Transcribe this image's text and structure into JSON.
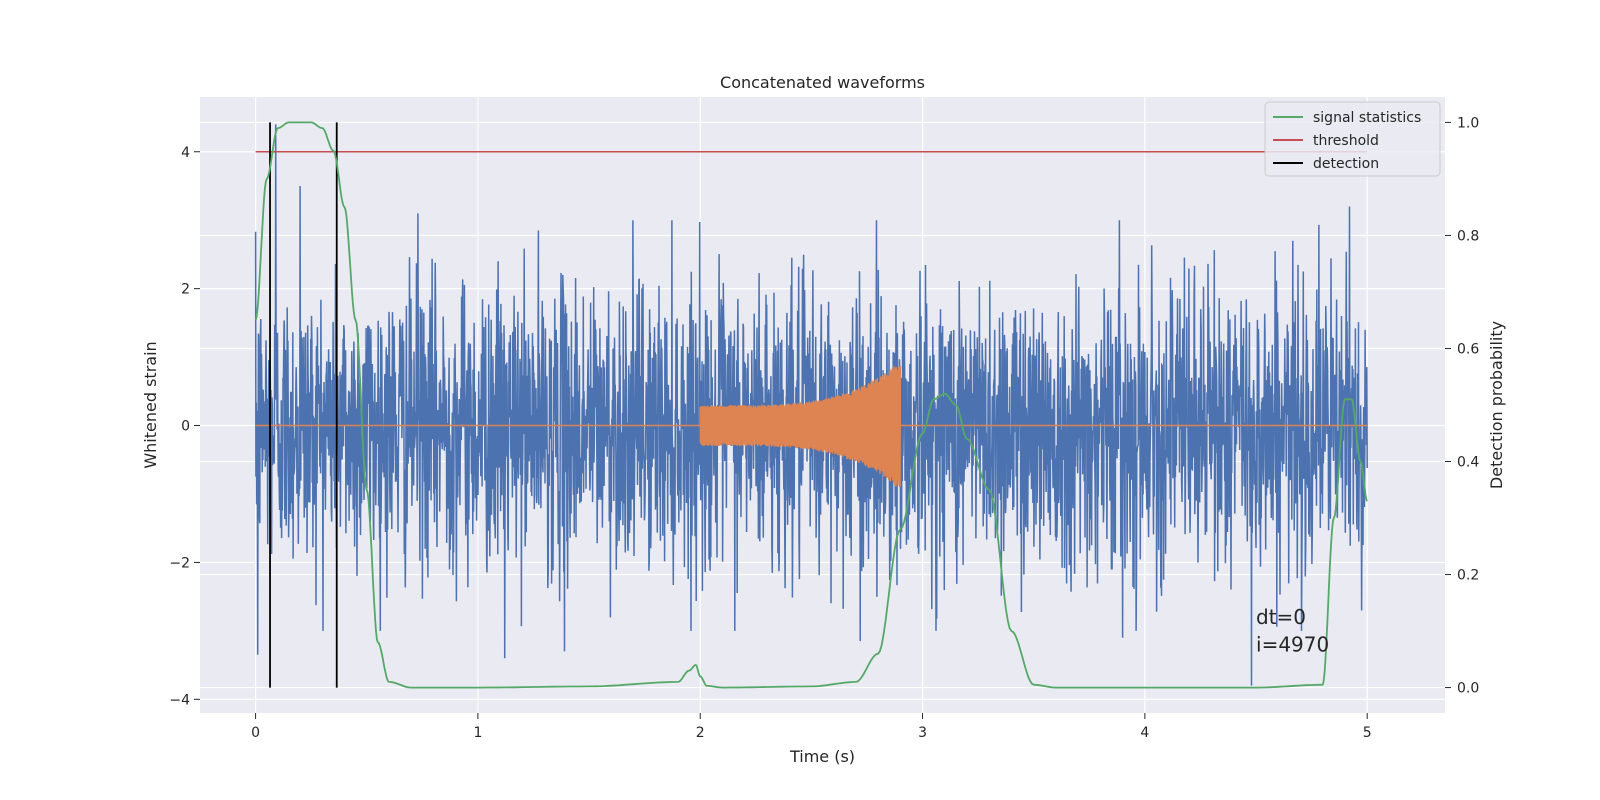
{
  "chart_data": {
    "type": "line",
    "title": "Concatenated waveforms",
    "xlabel": "Time (s)",
    "ylabel": "Whitened strain",
    "ylabel_right": "Detection probability",
    "xlim": [
      -0.25,
      5.35
    ],
    "ylim": [
      -4.2,
      4.8
    ],
    "ylim_right": [
      -0.045,
      1.045
    ],
    "xticks": [
      0,
      1,
      2,
      3,
      4,
      5
    ],
    "yticks": [
      -4,
      -2,
      0,
      2,
      4
    ],
    "yticks_right": [
      0.0,
      0.2,
      0.4,
      0.6,
      0.8,
      1.0
    ],
    "xtick_labels": [
      "0",
      "1",
      "2",
      "3",
      "4",
      "5"
    ],
    "ytick_labels": [
      "−4",
      "−2",
      "0",
      "2",
      "4"
    ],
    "ytick_right_labels": [
      "0.0",
      "0.2",
      "0.4",
      "0.6",
      "0.8",
      "1.0"
    ],
    "grid": true,
    "legend_position": "top-right",
    "colors": {
      "noise": "#4c72b0",
      "template": "#dd8452",
      "signal_statistics": "#55a868",
      "threshold": "#c44e52",
      "detection": "#000000",
      "background": "#eaeaf2",
      "grid": "#ffffff"
    },
    "series": [
      {
        "name": "signal statistics",
        "axis": "right",
        "x": [
          0,
          0.05,
          0.1,
          0.15,
          0.2,
          0.25,
          0.3,
          0.35,
          0.4,
          0.45,
          0.5,
          0.55,
          0.6,
          0.7,
          1.0,
          1.5,
          1.9,
          1.95,
          1.98,
          2.0,
          2.03,
          2.1,
          2.5,
          2.7,
          2.8,
          2.9,
          3.0,
          3.05,
          3.1,
          3.15,
          3.2,
          3.3,
          3.4,
          3.5,
          3.6,
          4.0,
          4.5,
          4.8,
          4.85,
          4.9,
          4.93,
          4.97,
          5.0
        ],
        "y": [
          0.65,
          0.9,
          0.99,
          1.0,
          1.0,
          1.0,
          0.99,
          0.95,
          0.85,
          0.65,
          0.35,
          0.08,
          0.01,
          0.0,
          0.0,
          0.002,
          0.01,
          0.03,
          0.04,
          0.02,
          0.003,
          0.0,
          0.002,
          0.01,
          0.06,
          0.28,
          0.45,
          0.51,
          0.52,
          0.5,
          0.44,
          0.35,
          0.1,
          0.005,
          0.0,
          0.0,
          0.0,
          0.005,
          0.3,
          0.51,
          0.51,
          0.4,
          0.33
        ]
      },
      {
        "name": "threshold",
        "axis": "left",
        "x": [
          0,
          5
        ],
        "y": [
          4,
          4
        ]
      },
      {
        "name": "detection",
        "axis": "right",
        "x": [
          0.065,
          0.065,
          0.365,
          0.365
        ],
        "y": [
          0,
          1,
          1,
          0
        ],
        "segments": [
          [
            0.065,
            0.065
          ],
          [
            0.365,
            0.365
          ]
        ]
      }
    ],
    "noise_trace": {
      "x_range": [
        0,
        5
      ],
      "typical_amplitude": 1.2,
      "spike_extremes": [
        {
          "x": 0.01,
          "y": -3.35
        },
        {
          "x": 0.09,
          "y": 4.4
        },
        {
          "x": 0.2,
          "y": 3.5
        },
        {
          "x": 0.73,
          "y": 3.1
        },
        {
          "x": 1.12,
          "y": -3.4
        },
        {
          "x": 1.39,
          "y": -3.3
        },
        {
          "x": 2.72,
          "y": -3.15
        },
        {
          "x": 3.9,
          "y": -3.1
        },
        {
          "x": 4.48,
          "y": -3.8
        },
        {
          "x": 4.92,
          "y": 3.2
        }
      ]
    },
    "template_trace": {
      "x_start": 2.0,
      "x_end": 2.9,
      "start_amplitude": 0.3,
      "end_amplitude": 0.95
    },
    "annotations": [
      {
        "text": "dt=0",
        "x": 4.5,
        "y": -2.9
      },
      {
        "text": "i=4970",
        "x": 4.5,
        "y": -3.3
      }
    ],
    "legend": [
      {
        "name": "signal statistics",
        "color": "#55a868"
      },
      {
        "name": "threshold",
        "color": "#c44e52"
      },
      {
        "name": "detection",
        "color": "#000000"
      }
    ]
  }
}
